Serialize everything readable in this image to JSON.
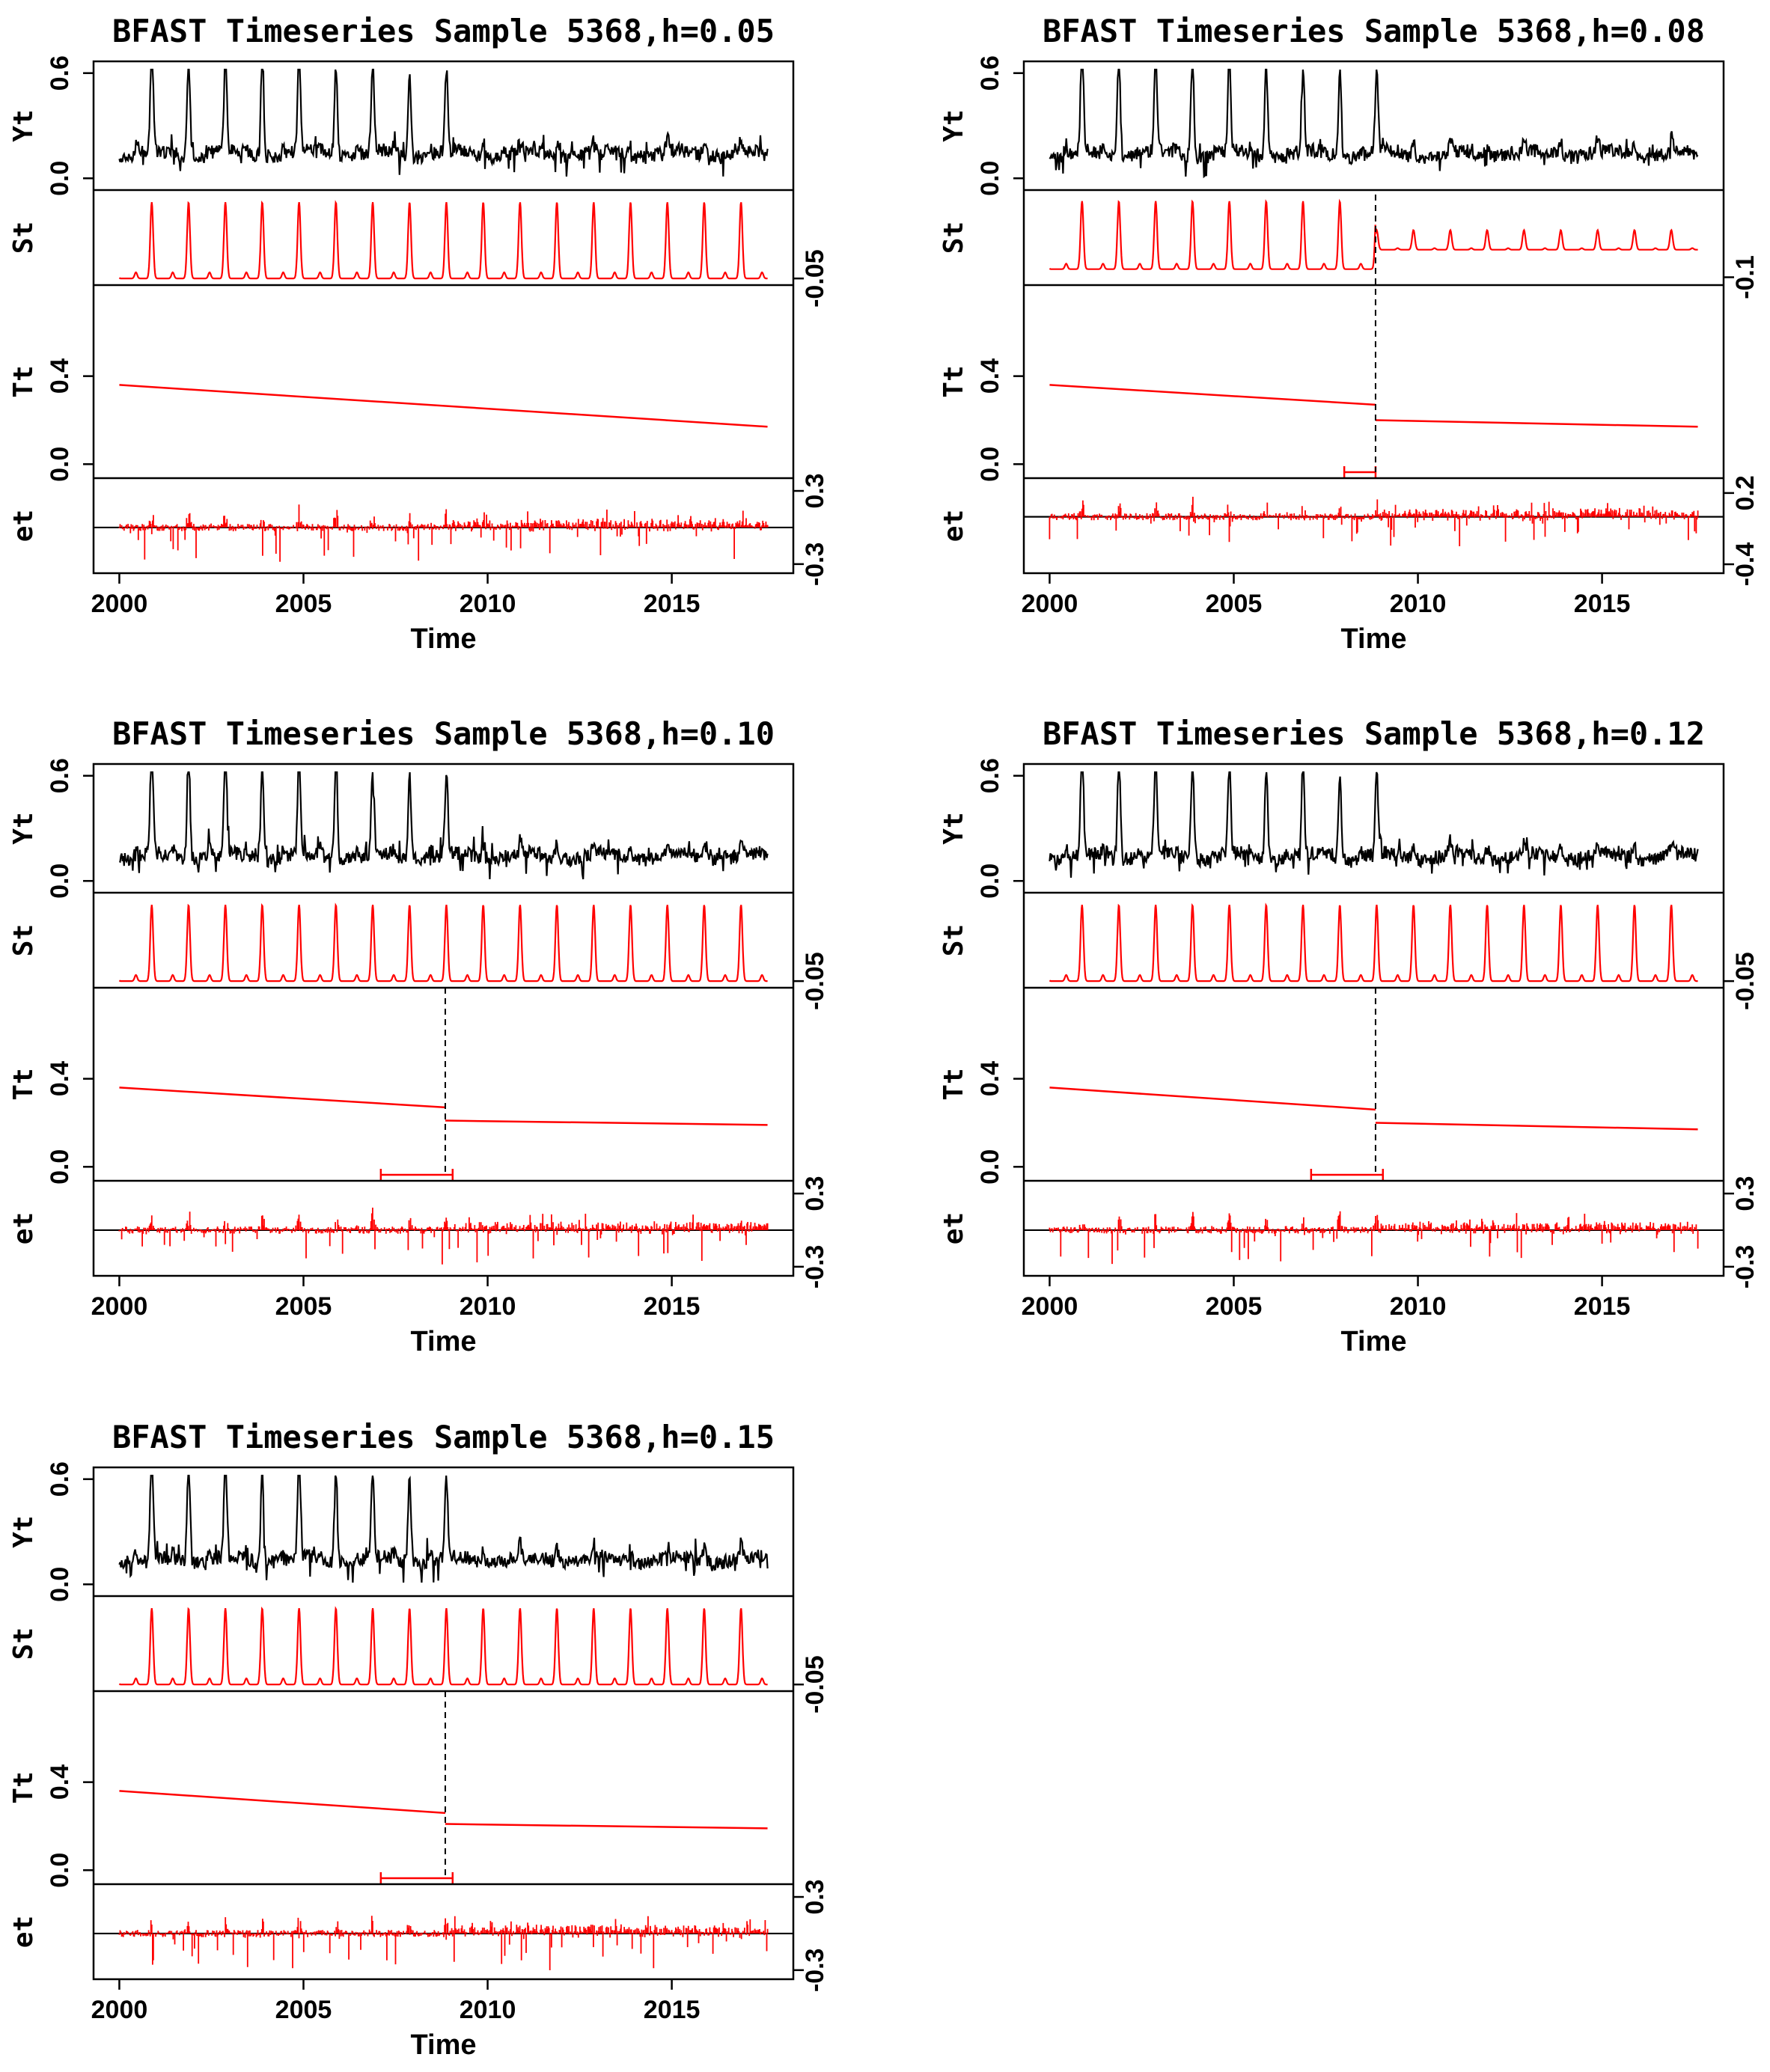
{
  "figure": {
    "description_free": true,
    "series_color": "#ff0000",
    "observed_color": "#000000",
    "frame_color": "#000000"
  },
  "chart_data": [
    {
      "type": "line",
      "title": "BFAST Timeseries Sample 5368,h=0.05",
      "xlabel": "Time",
      "x_ticks": [
        "2000",
        "2005",
        "2010",
        "2015"
      ],
      "xlim": [
        1999.3,
        2018.3
      ],
      "data_range": [
        2000.0,
        2017.6
      ],
      "panels": [
        {
          "label": "Yt",
          "ylim": [
            -0.05,
            0.65
          ],
          "ticks": [
            {
              "v": 0.0,
              "t": "0.0"
            },
            {
              "v": 0.6,
              "t": "0.6"
            }
          ],
          "side": "left"
        },
        {
          "label": "St",
          "ylim": [
            -0.07,
            0.42
          ],
          "ticks": [
            {
              "v": -0.05,
              "t": "-0.05"
            }
          ],
          "side": "right"
        },
        {
          "label": "Tt",
          "ylim": [
            -0.05,
            0.8
          ],
          "ticks": [
            {
              "v": 0.0,
              "t": "0.0"
            },
            {
              "v": 0.4,
              "t": "0.4"
            }
          ],
          "side": "left"
        },
        {
          "label": "et",
          "ylim": [
            -0.35,
            0.38
          ],
          "ticks": [
            {
              "v": -0.3,
              "t": "-0.3"
            },
            {
              "v": 0.3,
              "t": "0.3"
            }
          ],
          "side": "right"
        }
      ],
      "seasonal_amplitude_after_break": 1.0,
      "trend_segments": [
        {
          "x0": 2000.0,
          "y0": 0.36,
          "x1": 2017.6,
          "y1": 0.17
        }
      ],
      "breakpoints": [],
      "confidence_intervals": []
    },
    {
      "type": "line",
      "title": "BFAST Timeseries Sample 5368,h=0.08",
      "xlabel": "Time",
      "x_ticks": [
        "2000",
        "2005",
        "2010",
        "2015"
      ],
      "xlim": [
        1999.3,
        2018.3
      ],
      "data_range": [
        2000.0,
        2017.6
      ],
      "panels": [
        {
          "label": "Yt",
          "ylim": [
            -0.05,
            0.65
          ],
          "ticks": [
            {
              "v": 0.0,
              "t": "0.0"
            },
            {
              "v": 0.6,
              "t": "0.6"
            }
          ],
          "side": "left"
        },
        {
          "label": "St",
          "ylim": [
            -0.13,
            0.42
          ],
          "ticks": [
            {
              "v": -0.1,
              "t": "-0.1"
            }
          ],
          "side": "right"
        },
        {
          "label": "Tt",
          "ylim": [
            -0.05,
            0.8
          ],
          "ticks": [
            {
              "v": 0.0,
              "t": "0.0"
            },
            {
              "v": 0.4,
              "t": "0.4"
            }
          ],
          "side": "left"
        },
        {
          "label": "et",
          "ylim": [
            -0.45,
            0.3
          ],
          "ticks": [
            {
              "v": -0.4,
              "t": "-0.4"
            },
            {
              "v": 0.2,
              "t": "0.2"
            }
          ],
          "side": "right"
        }
      ],
      "seasonal_amplitude_after_break": 0.22,
      "trend_segments": [
        {
          "x0": 2000.0,
          "y0": 0.36,
          "x1": 2008.85,
          "y1": 0.27
        },
        {
          "x0": 2008.85,
          "y0": 0.2,
          "x1": 2017.6,
          "y1": 0.17
        }
      ],
      "breakpoints": [
        2008.85
      ],
      "confidence_intervals": [
        [
          2008.0,
          2008.85
        ]
      ]
    },
    {
      "type": "line",
      "title": "BFAST Timeseries Sample 5368,h=0.10",
      "xlabel": "Time",
      "x_ticks": [
        "2000",
        "2005",
        "2010",
        "2015"
      ],
      "xlim": [
        1999.3,
        2018.3
      ],
      "data_range": [
        2000.0,
        2017.6
      ],
      "panels": [
        {
          "label": "Yt",
          "ylim": [
            -0.05,
            0.65
          ],
          "ticks": [
            {
              "v": 0.0,
              "t": "0.0"
            },
            {
              "v": 0.6,
              "t": "0.6"
            }
          ],
          "side": "left"
        },
        {
          "label": "St",
          "ylim": [
            -0.07,
            0.42
          ],
          "ticks": [
            {
              "v": -0.05,
              "t": "-0.05"
            }
          ],
          "side": "right"
        },
        {
          "label": "Tt",
          "ylim": [
            -0.05,
            0.8
          ],
          "ticks": [
            {
              "v": 0.0,
              "t": "0.0"
            },
            {
              "v": 0.4,
              "t": "0.4"
            }
          ],
          "side": "left"
        },
        {
          "label": "et",
          "ylim": [
            -0.35,
            0.38
          ],
          "ticks": [
            {
              "v": -0.3,
              "t": "-0.3"
            },
            {
              "v": 0.3,
              "t": "0.3"
            }
          ],
          "side": "right"
        }
      ],
      "seasonal_amplitude_after_break": 1.0,
      "trend_segments": [
        {
          "x0": 2000.0,
          "y0": 0.36,
          "x1": 2008.85,
          "y1": 0.27
        },
        {
          "x0": 2008.85,
          "y0": 0.21,
          "x1": 2017.6,
          "y1": 0.19
        }
      ],
      "breakpoints": [
        2008.85
      ],
      "confidence_intervals": [
        [
          2007.1,
          2009.05
        ]
      ]
    },
    {
      "type": "line",
      "title": "BFAST Timeseries Sample 5368,h=0.12",
      "xlabel": "Time",
      "x_ticks": [
        "2000",
        "2005",
        "2010",
        "2015"
      ],
      "xlim": [
        1999.3,
        2018.3
      ],
      "data_range": [
        2000.0,
        2017.6
      ],
      "panels": [
        {
          "label": "Yt",
          "ylim": [
            -0.05,
            0.65
          ],
          "ticks": [
            {
              "v": 0.0,
              "t": "0.0"
            },
            {
              "v": 0.6,
              "t": "0.6"
            }
          ],
          "side": "left"
        },
        {
          "label": "St",
          "ylim": [
            -0.07,
            0.42
          ],
          "ticks": [
            {
              "v": -0.05,
              "t": "-0.05"
            }
          ],
          "side": "right"
        },
        {
          "label": "Tt",
          "ylim": [
            -0.05,
            0.8
          ],
          "ticks": [
            {
              "v": 0.0,
              "t": "0.0"
            },
            {
              "v": 0.4,
              "t": "0.4"
            }
          ],
          "side": "left"
        },
        {
          "label": "et",
          "ylim": [
            -0.35,
            0.38
          ],
          "ticks": [
            {
              "v": -0.3,
              "t": "-0.3"
            },
            {
              "v": 0.3,
              "t": "0.3"
            }
          ],
          "side": "right"
        }
      ],
      "seasonal_amplitude_after_break": 1.0,
      "trend_segments": [
        {
          "x0": 2000.0,
          "y0": 0.36,
          "x1": 2008.85,
          "y1": 0.26
        },
        {
          "x0": 2008.85,
          "y0": 0.2,
          "x1": 2017.6,
          "y1": 0.17
        }
      ],
      "breakpoints": [
        2008.85
      ],
      "confidence_intervals": [
        [
          2007.1,
          2009.05
        ]
      ]
    },
    {
      "type": "line",
      "title": "BFAST Timeseries Sample 5368,h=0.15",
      "xlabel": "Time",
      "x_ticks": [
        "2000",
        "2005",
        "2010",
        "2015"
      ],
      "xlim": [
        1999.3,
        2018.3
      ],
      "data_range": [
        2000.0,
        2017.6
      ],
      "panels": [
        {
          "label": "Yt",
          "ylim": [
            -0.05,
            0.65
          ],
          "ticks": [
            {
              "v": 0.0,
              "t": "0.0"
            },
            {
              "v": 0.6,
              "t": "0.6"
            }
          ],
          "side": "left"
        },
        {
          "label": "St",
          "ylim": [
            -0.07,
            0.42
          ],
          "ticks": [
            {
              "v": -0.05,
              "t": "-0.05"
            }
          ],
          "side": "right"
        },
        {
          "label": "Tt",
          "ylim": [
            -0.05,
            0.8
          ],
          "ticks": [
            {
              "v": 0.0,
              "t": "0.0"
            },
            {
              "v": 0.4,
              "t": "0.4"
            }
          ],
          "side": "left"
        },
        {
          "label": "et",
          "ylim": [
            -0.35,
            0.38
          ],
          "ticks": [
            {
              "v": -0.3,
              "t": "-0.3"
            },
            {
              "v": 0.3,
              "t": "0.3"
            }
          ],
          "side": "right"
        }
      ],
      "seasonal_amplitude_after_break": 1.0,
      "trend_segments": [
        {
          "x0": 2000.0,
          "y0": 0.36,
          "x1": 2008.85,
          "y1": 0.26
        },
        {
          "x0": 2008.85,
          "y0": 0.21,
          "x1": 2017.6,
          "y1": 0.19
        }
      ],
      "breakpoints": [
        2008.85
      ],
      "confidence_intervals": [
        [
          2007.1,
          2009.05
        ]
      ]
    }
  ]
}
